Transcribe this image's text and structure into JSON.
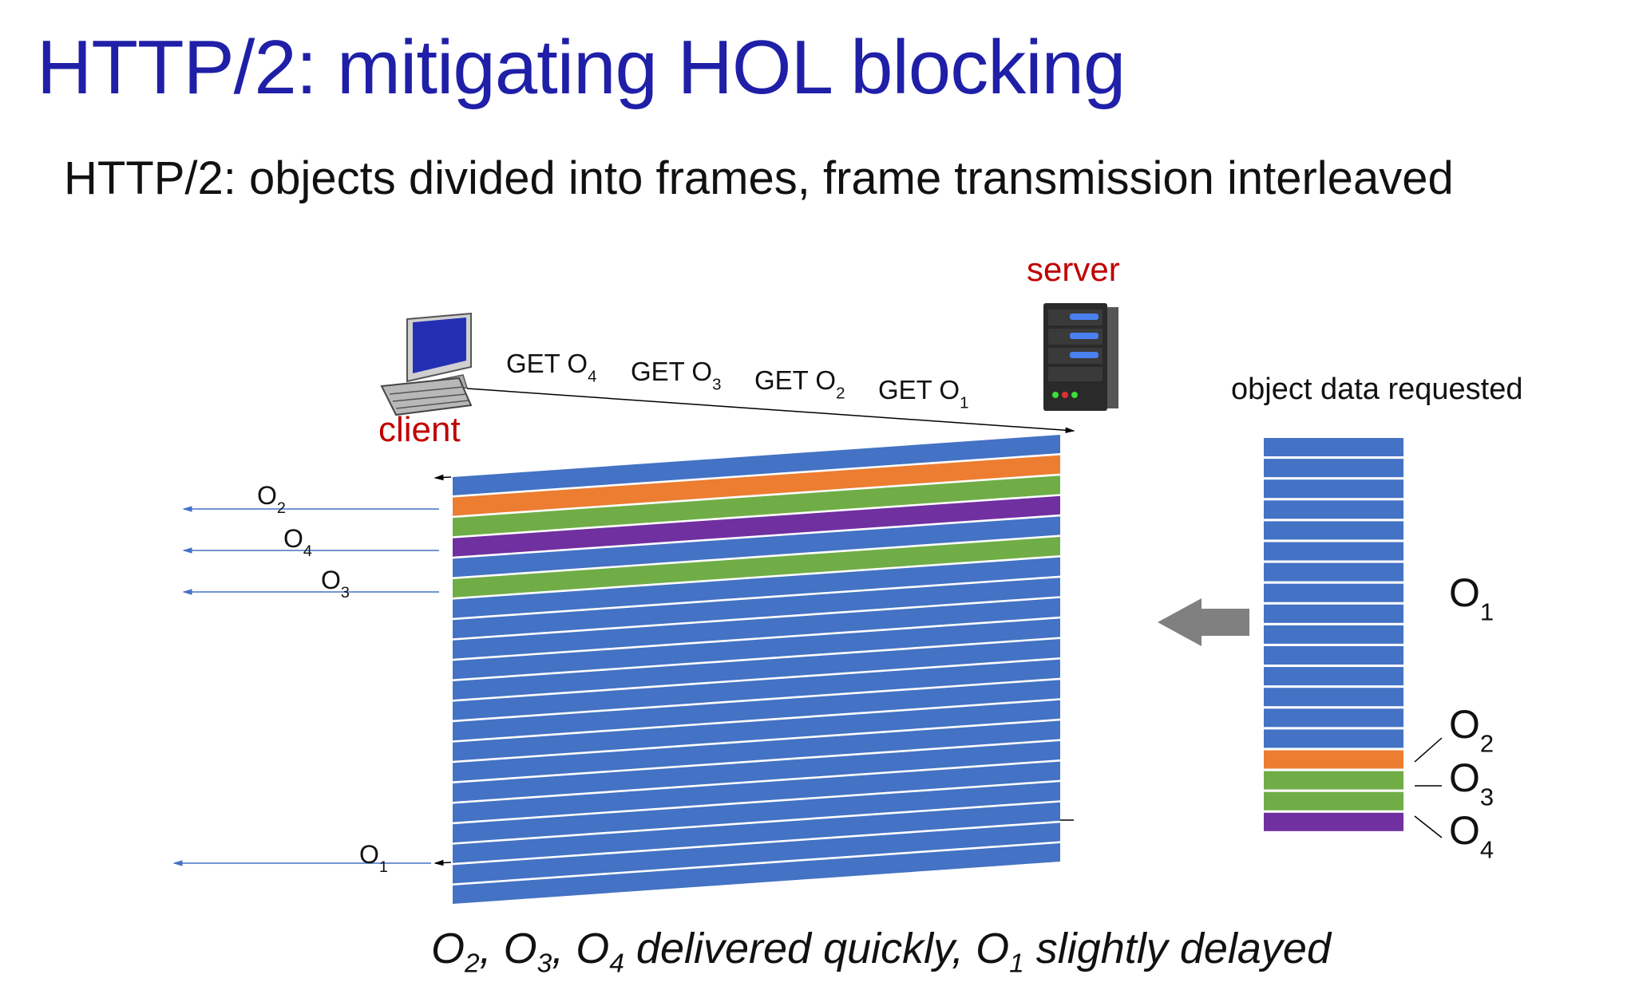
{
  "title": "HTTP/2: mitigating HOL blocking",
  "subtitle": "HTTP/2: objects divided into frames, frame transmission interleaved",
  "labels": {
    "server": "server",
    "client": "client",
    "object_data_requested": "object data requested"
  },
  "requests": [
    {
      "text": "GET O",
      "sub": "4"
    },
    {
      "text": "GET O",
      "sub": "3"
    },
    {
      "text": "GET O",
      "sub": "2"
    },
    {
      "text": "GET O",
      "sub": "1"
    }
  ],
  "arrivals": [
    {
      "text": "O",
      "sub": "2"
    },
    {
      "text": "O",
      "sub": "4"
    },
    {
      "text": "O",
      "sub": "3"
    },
    {
      "text": "O",
      "sub": "1"
    }
  ],
  "stack_labels": [
    {
      "text": "O",
      "sub": "1"
    },
    {
      "text": "O",
      "sub": "2"
    },
    {
      "text": "O",
      "sub": "3"
    },
    {
      "text": "O",
      "sub": "4"
    }
  ],
  "footer": {
    "parts": [
      {
        "text": "O",
        "sub": "2"
      },
      {
        "text": ", O",
        "sub": "3"
      },
      {
        "text": ", O",
        "sub": "4"
      },
      {
        "text": " delivered quickly, O",
        "sub": "1"
      },
      {
        "text": " slightly delayed",
        "sub": ""
      }
    ]
  },
  "colors": {
    "title": "#1f1fa8",
    "red_label": "#c00000",
    "o1": "#4472c4",
    "o2": "#ed7d31",
    "o3": "#70ad47",
    "o4": "#7030a0",
    "arrow_gray": "#808080"
  },
  "frame_sequence": [
    "o1",
    "o2",
    "o3",
    "o4",
    "o1",
    "o3",
    "o1",
    "o1",
    "o1",
    "o1",
    "o1",
    "o1",
    "o1",
    "o1",
    "o1",
    "o1",
    "o1",
    "o1",
    "o1",
    "o1",
    "o1"
  ],
  "stack_sequence": [
    "o1",
    "o1",
    "o1",
    "o1",
    "o1",
    "o1",
    "o1",
    "o1",
    "o1",
    "o1",
    "o1",
    "o1",
    "o1",
    "o1",
    "o1",
    "o2",
    "o3",
    "o3",
    "o4"
  ],
  "icons": {
    "client": "desktop-computer-icon",
    "server": "server-tower-icon",
    "big_arrow": "left-arrow-icon"
  }
}
